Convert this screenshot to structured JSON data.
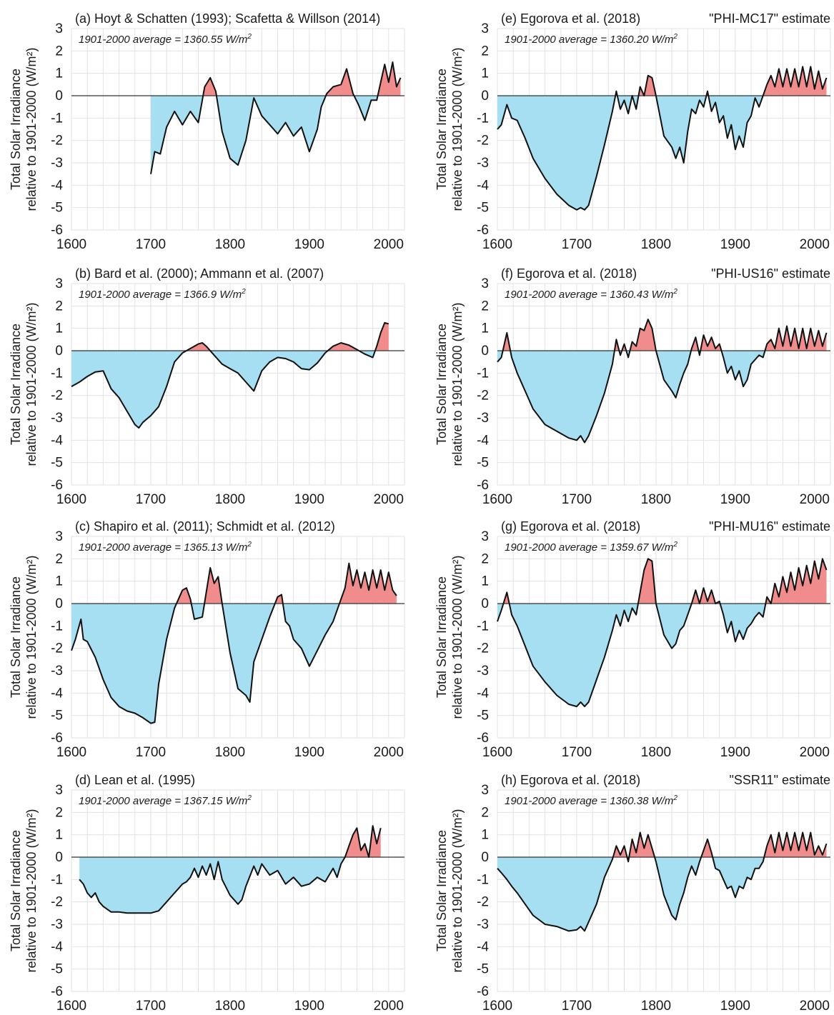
{
  "figure": {
    "colors": {
      "above": "#f08c8c",
      "below": "#a6def2",
      "line": "#111111",
      "grid": "#e2e2e2",
      "baseline": "#333333"
    }
  },
  "chart_data": [
    {
      "type": "area",
      "panel_id": "a",
      "title": "(a) Hoyt & Schatten (1993); Scafetta & Willson (2014)",
      "estimate": "",
      "annotation": "1901-2000 average = 1360.55 W/m",
      "annotation_sup": "2",
      "ylabel": [
        "Total Solar Irradiance",
        "relative to 1901-2000 (W/m²)"
      ],
      "xlim": [
        1600,
        2020
      ],
      "ylim": [
        -6,
        3
      ],
      "xticks": [
        1600,
        1700,
        1800,
        1900,
        2000
      ],
      "yticks": [
        3,
        2,
        1,
        0,
        -1,
        -2,
        -3,
        -4,
        -5,
        -6
      ],
      "x": [
        1700,
        1705,
        1712,
        1720,
        1730,
        1740,
        1750,
        1760,
        1768,
        1775,
        1782,
        1790,
        1800,
        1810,
        1820,
        1830,
        1840,
        1850,
        1860,
        1870,
        1880,
        1890,
        1900,
        1910,
        1915,
        1922,
        1930,
        1940,
        1947,
        1955,
        1962,
        1970,
        1978,
        1985,
        1990,
        1995,
        2000,
        2005,
        2010,
        2015
      ],
      "y": [
        -3.5,
        -2.5,
        -2.6,
        -1.4,
        -0.7,
        -1.3,
        -0.7,
        -1.2,
        0.4,
        0.8,
        0.2,
        -1.6,
        -2.8,
        -3.1,
        -2.0,
        -0.1,
        -0.9,
        -1.3,
        -1.7,
        -1.2,
        -1.8,
        -1.4,
        -2.5,
        -1.5,
        -0.5,
        0.1,
        0.4,
        0.5,
        1.2,
        0.1,
        -0.4,
        -1.1,
        -0.2,
        -0.2,
        0.6,
        1.4,
        0.6,
        1.5,
        0.4,
        0.8
      ]
    },
    {
      "type": "area",
      "panel_id": "b",
      "title": "(b) Bard et al. (2000); Ammann et al. (2007)",
      "estimate": "",
      "annotation": "1901-2000 average = 1366.9 W/m",
      "annotation_sup": "2",
      "ylabel": [
        "Total Solar Irradiance",
        "relative to 1901-2000 (W/m²)"
      ],
      "xlim": [
        1600,
        2020
      ],
      "ylim": [
        -6,
        3
      ],
      "xticks": [
        1600,
        1700,
        1800,
        1900,
        2000
      ],
      "yticks": [
        3,
        2,
        1,
        0,
        -1,
        -2,
        -3,
        -4,
        -5,
        -6
      ],
      "x": [
        1600,
        1610,
        1620,
        1630,
        1640,
        1650,
        1660,
        1670,
        1680,
        1685,
        1690,
        1700,
        1710,
        1720,
        1730,
        1740,
        1750,
        1760,
        1765,
        1770,
        1780,
        1790,
        1800,
        1810,
        1820,
        1830,
        1840,
        1850,
        1860,
        1870,
        1880,
        1890,
        1900,
        1910,
        1920,
        1930,
        1940,
        1950,
        1960,
        1970,
        1980,
        1985,
        1990,
        1995,
        2000
      ],
      "y": [
        -1.6,
        -1.4,
        -1.15,
        -0.95,
        -0.9,
        -1.7,
        -2.1,
        -2.7,
        -3.3,
        -3.45,
        -3.2,
        -2.9,
        -2.5,
        -1.6,
        -0.5,
        -0.1,
        0.1,
        0.3,
        0.35,
        0.2,
        -0.2,
        -0.6,
        -0.8,
        -1.0,
        -1.4,
        -1.8,
        -0.9,
        -0.5,
        -0.3,
        -0.35,
        -0.5,
        -0.8,
        -0.85,
        -0.55,
        -0.1,
        0.2,
        0.35,
        0.25,
        0.05,
        -0.15,
        -0.3,
        0.2,
        0.8,
        1.25,
        1.2
      ]
    },
    {
      "type": "area",
      "panel_id": "c",
      "title": "(c) Shapiro et al. (2011); Schmidt et al. (2012)",
      "estimate": "",
      "annotation": "1901-2000 average = 1365.13 W/m",
      "annotation_sup": "2",
      "ylabel": [
        "Total Solar Irradiance",
        "relative to 1901-2000 (W/m²)"
      ],
      "xlim": [
        1600,
        2020
      ],
      "ylim": [
        -6,
        3
      ],
      "xticks": [
        1600,
        1700,
        1800,
        1900,
        2000
      ],
      "yticks": [
        3,
        2,
        1,
        0,
        -1,
        -2,
        -3,
        -4,
        -5,
        -6
      ],
      "x": [
        1600,
        1605,
        1612,
        1615,
        1620,
        1630,
        1640,
        1650,
        1660,
        1670,
        1680,
        1690,
        1700,
        1705,
        1710,
        1720,
        1730,
        1740,
        1745,
        1750,
        1755,
        1765,
        1770,
        1775,
        1780,
        1785,
        1790,
        1800,
        1810,
        1820,
        1825,
        1830,
        1840,
        1850,
        1860,
        1865,
        1870,
        1875,
        1880,
        1890,
        1900,
        1910,
        1920,
        1930,
        1940,
        1945,
        1950,
        1955,
        1960,
        1965,
        1970,
        1975,
        1980,
        1985,
        1990,
        1995,
        2000,
        2005,
        2010
      ],
      "y": [
        -2.1,
        -1.6,
        -0.7,
        -1.6,
        -1.7,
        -2.4,
        -3.4,
        -4.2,
        -4.6,
        -4.8,
        -4.9,
        -5.1,
        -5.35,
        -5.3,
        -3.6,
        -1.6,
        -0.2,
        0.6,
        0.7,
        0.2,
        -0.7,
        -0.6,
        0.5,
        1.6,
        0.9,
        1.2,
        0.0,
        -2.2,
        -3.8,
        -4.1,
        -4.4,
        -2.6,
        -1.6,
        -0.6,
        0.3,
        0.4,
        -0.8,
        -1.0,
        -1.6,
        -2.0,
        -2.8,
        -2.1,
        -1.4,
        -0.8,
        0.2,
        0.7,
        1.8,
        0.8,
        1.5,
        0.7,
        1.4,
        0.6,
        1.5,
        0.7,
        1.5,
        0.6,
        1.4,
        0.6,
        0.35
      ]
    },
    {
      "type": "area",
      "panel_id": "d",
      "title": "(d) Lean et al. (1995)",
      "estimate": "",
      "annotation": "1901-2000 average = 1367.15 W/m",
      "annotation_sup": "2",
      "ylabel": [
        "Total Solar Irradiance",
        "relative to 1901-2000 (W/m²)"
      ],
      "xlim": [
        1600,
        2020
      ],
      "ylim": [
        -6,
        3
      ],
      "xticks": [
        1600,
        1700,
        1800,
        1900,
        2000
      ],
      "yticks": [
        3,
        2,
        1,
        0,
        -1,
        -2,
        -3,
        -4,
        -5,
        -6
      ],
      "x": [
        1610,
        1615,
        1620,
        1625,
        1630,
        1635,
        1640,
        1650,
        1660,
        1670,
        1680,
        1690,
        1700,
        1710,
        1720,
        1730,
        1735,
        1740,
        1745,
        1750,
        1755,
        1760,
        1765,
        1770,
        1775,
        1780,
        1785,
        1790,
        1800,
        1810,
        1815,
        1820,
        1830,
        1835,
        1840,
        1850,
        1860,
        1870,
        1880,
        1890,
        1900,
        1910,
        1920,
        1930,
        1935,
        1940,
        1945,
        1950,
        1955,
        1960,
        1965,
        1970,
        1975,
        1980,
        1985,
        1990
      ],
      "y": [
        -1.0,
        -1.2,
        -1.6,
        -1.8,
        -1.6,
        -2.0,
        -2.2,
        -2.45,
        -2.45,
        -2.5,
        -2.5,
        -2.5,
        -2.5,
        -2.4,
        -2.0,
        -1.6,
        -1.4,
        -1.2,
        -1.1,
        -0.9,
        -0.5,
        -0.9,
        -0.4,
        -0.8,
        -0.3,
        -1.0,
        -0.2,
        -1.0,
        -1.7,
        -2.1,
        -1.9,
        -1.3,
        -0.4,
        -0.8,
        -0.3,
        -0.8,
        -0.6,
        -1.2,
        -0.9,
        -1.3,
        -1.2,
        -0.9,
        -1.1,
        -0.5,
        -0.9,
        -0.3,
        0.0,
        0.5,
        1.0,
        1.3,
        0.3,
        0.6,
        0.0,
        1.4,
        0.6,
        1.3
      ]
    },
    {
      "type": "area",
      "panel_id": "e",
      "title": "(e) Egorova et al. (2018)",
      "estimate": "\"PHI-MC17\" estimate",
      "annotation": "1901-2000 average = 1360.20 W/m",
      "annotation_sup": "2",
      "ylabel": [
        "Total Solar Irradiance",
        "relative to 1901-2000 (W/m²)"
      ],
      "xlim": [
        1600,
        2020
      ],
      "ylim": [
        -6,
        3
      ],
      "xticks": [
        1600,
        1700,
        1800,
        1900,
        2000
      ],
      "yticks": [
        3,
        2,
        1,
        0,
        -1,
        -2,
        -3,
        -4,
        -5,
        -6
      ],
      "x": [
        1600,
        1605,
        1612,
        1618,
        1625,
        1635,
        1645,
        1660,
        1675,
        1690,
        1700,
        1705,
        1710,
        1715,
        1725,
        1735,
        1745,
        1750,
        1755,
        1760,
        1765,
        1770,
        1775,
        1780,
        1785,
        1790,
        1795,
        1800,
        1810,
        1820,
        1825,
        1830,
        1835,
        1840,
        1845,
        1850,
        1855,
        1860,
        1865,
        1870,
        1875,
        1880,
        1885,
        1890,
        1895,
        1900,
        1905,
        1910,
        1915,
        1920,
        1925,
        1930,
        1935,
        1940,
        1945,
        1950,
        1955,
        1960,
        1965,
        1970,
        1975,
        1980,
        1985,
        1990,
        1995,
        2000,
        2005,
        2010,
        2015
      ],
      "y": [
        -1.5,
        -1.3,
        -0.4,
        -1.0,
        -1.1,
        -1.9,
        -2.8,
        -3.7,
        -4.4,
        -4.9,
        -5.1,
        -5.0,
        -5.1,
        -4.9,
        -3.6,
        -2.2,
        -0.7,
        0.2,
        -0.6,
        -0.2,
        -0.8,
        0.0,
        -0.6,
        0.4,
        0.0,
        0.9,
        0.8,
        0.0,
        -1.8,
        -2.3,
        -2.8,
        -2.3,
        -3.0,
        -1.6,
        -0.6,
        -0.8,
        -0.2,
        -0.5,
        0.2,
        -0.7,
        -0.3,
        -1.2,
        -0.9,
        -1.9,
        -1.3,
        -2.4,
        -1.8,
        -2.3,
        -1.2,
        -0.9,
        -0.1,
        -0.5,
        0.0,
        0.5,
        0.9,
        0.4,
        1.2,
        0.4,
        1.2,
        0.4,
        1.2,
        0.4,
        1.3,
        0.4,
        1.3,
        0.3,
        1.1,
        0.3,
        0.8
      ]
    },
    {
      "type": "area",
      "panel_id": "f",
      "title": "(f) Egorova et al. (2018)",
      "estimate": "\"PHI-US16\" estimate",
      "annotation": "1901-2000 average = 1360.43 W/m",
      "annotation_sup": "2",
      "ylabel": [
        "Total Solar Irradiance",
        "relative to 1901-2000 (W/m²)"
      ],
      "xlim": [
        1600,
        2020
      ],
      "ylim": [
        -6,
        3
      ],
      "xticks": [
        1600,
        1700,
        1800,
        1900,
        2000
      ],
      "yticks": [
        3,
        2,
        1,
        0,
        -1,
        -2,
        -3,
        -4,
        -5,
        -6
      ],
      "x": [
        1600,
        1605,
        1612,
        1618,
        1625,
        1635,
        1645,
        1660,
        1675,
        1690,
        1700,
        1705,
        1710,
        1715,
        1725,
        1735,
        1745,
        1750,
        1755,
        1760,
        1765,
        1770,
        1775,
        1780,
        1785,
        1790,
        1795,
        1800,
        1810,
        1820,
        1825,
        1830,
        1835,
        1840,
        1845,
        1850,
        1855,
        1860,
        1865,
        1870,
        1875,
        1880,
        1885,
        1890,
        1895,
        1900,
        1905,
        1910,
        1915,
        1920,
        1925,
        1930,
        1935,
        1940,
        1945,
        1950,
        1955,
        1960,
        1965,
        1970,
        1975,
        1980,
        1985,
        1990,
        1995,
        2000,
        2005,
        2010,
        2015
      ],
      "y": [
        -0.5,
        -0.3,
        0.8,
        -0.3,
        -1.0,
        -1.8,
        -2.6,
        -3.3,
        -3.6,
        -3.9,
        -4.0,
        -3.8,
        -4.1,
        -3.8,
        -2.9,
        -1.9,
        -0.6,
        0.5,
        -0.2,
        0.3,
        -0.3,
        0.4,
        0.2,
        1.0,
        0.9,
        1.4,
        1.0,
        0.0,
        -1.3,
        -1.8,
        -2.1,
        -1.5,
        -1.0,
        -0.6,
        0.1,
        0.6,
        -0.2,
        0.7,
        0.2,
        0.6,
        0.1,
        0.3,
        -0.3,
        -1.0,
        -0.7,
        -1.3,
        -0.9,
        -1.6,
        -1.3,
        -0.6,
        -0.4,
        -0.2,
        -0.3,
        0.3,
        0.5,
        0.1,
        1.0,
        0.2,
        1.1,
        0.2,
        1.0,
        0.1,
        1.0,
        0.1,
        1.0,
        0.2,
        0.9,
        0.2,
        0.8
      ]
    },
    {
      "type": "area",
      "panel_id": "g",
      "title": "(g) Egorova et al. (2018)",
      "estimate": "\"PHI-MU16\" estimate",
      "annotation": "1901-2000 average = 1359.67 W/m",
      "annotation_sup": "2",
      "ylabel": [
        "Total Solar Irradiance",
        "relative to 1901-2000 (W/m²)"
      ],
      "xlim": [
        1600,
        2020
      ],
      "ylim": [
        -6,
        3
      ],
      "xticks": [
        1600,
        1700,
        1800,
        1900,
        2000
      ],
      "yticks": [
        3,
        2,
        1,
        0,
        -1,
        -2,
        -3,
        -4,
        -5,
        -6
      ],
      "x": [
        1600,
        1605,
        1612,
        1618,
        1625,
        1635,
        1645,
        1660,
        1675,
        1690,
        1700,
        1705,
        1710,
        1715,
        1725,
        1735,
        1745,
        1750,
        1755,
        1760,
        1765,
        1770,
        1775,
        1780,
        1785,
        1790,
        1795,
        1800,
        1810,
        1820,
        1825,
        1830,
        1835,
        1840,
        1845,
        1850,
        1855,
        1860,
        1865,
        1870,
        1875,
        1880,
        1885,
        1890,
        1895,
        1900,
        1905,
        1910,
        1915,
        1920,
        1925,
        1930,
        1935,
        1940,
        1945,
        1950,
        1955,
        1960,
        1965,
        1970,
        1975,
        1980,
        1985,
        1990,
        1995,
        2000,
        2005,
        2010,
        2015
      ],
      "y": [
        -0.8,
        -0.3,
        0.5,
        -0.5,
        -1.0,
        -1.9,
        -2.8,
        -3.5,
        -4.1,
        -4.5,
        -4.6,
        -4.4,
        -4.6,
        -4.4,
        -3.4,
        -2.4,
        -1.2,
        -0.5,
        -1.0,
        -0.3,
        -0.8,
        -0.2,
        -0.5,
        0.5,
        1.5,
        2.0,
        1.9,
        0.0,
        -1.4,
        -2.0,
        -1.8,
        -1.2,
        -1.0,
        -0.5,
        0.0,
        0.6,
        0.0,
        0.7,
        0.1,
        0.6,
        0.0,
        0.1,
        -0.5,
        -1.3,
        -0.8,
        -1.7,
        -1.2,
        -1.6,
        -1.1,
        -0.9,
        -0.6,
        -0.4,
        -0.6,
        0.3,
        0.0,
        0.9,
        0.3,
        1.2,
        0.5,
        1.4,
        0.6,
        1.6,
        0.8,
        1.7,
        0.9,
        1.9,
        1.1,
        2.0,
        1.5
      ]
    },
    {
      "type": "area",
      "panel_id": "h",
      "title": "(h) Egorova et al. (2018)",
      "estimate": "\"SSR11\" estimate",
      "annotation": "1901-2000 average = 1360.38 W/m",
      "annotation_sup": "2",
      "ylabel": [
        "Total Solar Irradiance",
        "relative to 1901-2000 (W/m²)"
      ],
      "xlim": [
        1600,
        2020
      ],
      "ylim": [
        -6,
        3
      ],
      "xticks": [
        1600,
        1700,
        1800,
        1900,
        2000
      ],
      "yticks": [
        3,
        2,
        1,
        0,
        -1,
        -2,
        -3,
        -4,
        -5,
        -6
      ],
      "x": [
        1600,
        1605,
        1612,
        1618,
        1625,
        1635,
        1645,
        1660,
        1675,
        1690,
        1700,
        1705,
        1710,
        1715,
        1725,
        1735,
        1745,
        1750,
        1755,
        1760,
        1765,
        1770,
        1775,
        1780,
        1785,
        1790,
        1795,
        1800,
        1810,
        1820,
        1825,
        1830,
        1835,
        1840,
        1845,
        1850,
        1855,
        1860,
        1865,
        1870,
        1875,
        1880,
        1885,
        1890,
        1895,
        1900,
        1905,
        1910,
        1915,
        1920,
        1925,
        1930,
        1935,
        1940,
        1945,
        1950,
        1955,
        1960,
        1965,
        1970,
        1975,
        1980,
        1985,
        1990,
        1995,
        2000,
        2005,
        2010,
        2015
      ],
      "y": [
        -0.5,
        -0.7,
        -1.0,
        -1.3,
        -1.6,
        -2.1,
        -2.6,
        -3.0,
        -3.1,
        -3.3,
        -3.25,
        -3.1,
        -3.3,
        -2.9,
        -2.1,
        -0.9,
        -0.1,
        0.5,
        0.1,
        0.5,
        -0.2,
        0.8,
        0.2,
        1.1,
        0.4,
        1.0,
        0.4,
        -0.2,
        -1.7,
        -2.6,
        -2.8,
        -2.1,
        -1.6,
        -0.9,
        -0.4,
        -0.8,
        -0.2,
        0.3,
        0.8,
        0.2,
        -0.5,
        -0.6,
        -1.0,
        -1.4,
        -1.3,
        -1.8,
        -1.3,
        -1.4,
        -0.9,
        -1.0,
        -0.5,
        -0.5,
        -0.2,
        0.5,
        1.0,
        0.2,
        1.1,
        0.3,
        1.1,
        0.3,
        1.1,
        0.3,
        1.1,
        0.3,
        1.1,
        0.1,
        0.5,
        0.1,
        0.6
      ]
    }
  ]
}
